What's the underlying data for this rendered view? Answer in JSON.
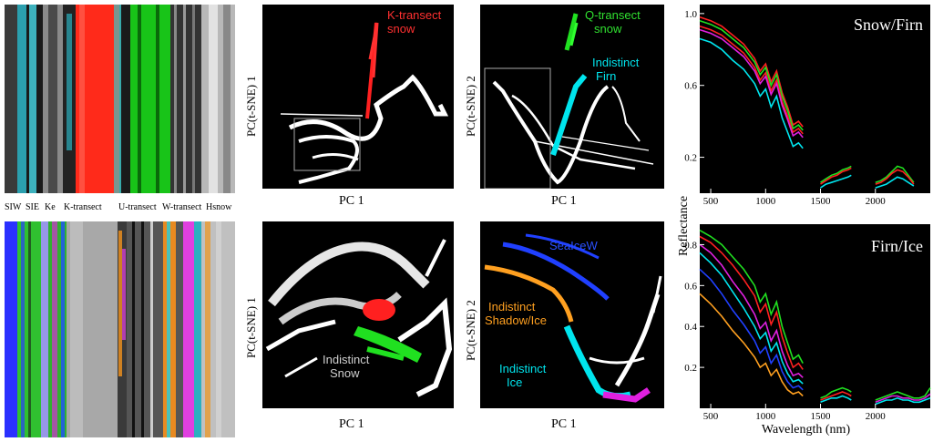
{
  "strip_labels": [
    "SIW",
    "SIE",
    "Ke",
    "K-transect",
    "U-transect",
    "W-transect",
    "Hsnow"
  ],
  "scatter_panels": [
    {
      "ylabel": "PC(t-SNE) 1",
      "xlabel": "PC 1",
      "annotations": [
        "K-transect",
        "snow"
      ]
    },
    {
      "ylabel": "PC(t-SNE) 2",
      "xlabel": "PC 1",
      "annotations": [
        "Q-transect",
        "snow",
        "Indistinct",
        "Firn"
      ]
    },
    {
      "ylabel": "PC(t-SNE) 1",
      "xlabel": "PC 1",
      "annotations": [
        "Indistinct",
        "Snow"
      ]
    },
    {
      "ylabel": "PC(t-SNE) 2",
      "xlabel": "PC 1",
      "annotations": [
        "SeaIceW",
        "Indistinct",
        "Shadow/Ice",
        "Indistinct",
        "Ice"
      ]
    }
  ],
  "colors": {
    "red": "#ff2020",
    "green": "#20e020",
    "cyan": "#00e5ee",
    "blue": "#2040ff",
    "orange": "#ffa020",
    "magenta": "#e020e0",
    "white": "#ffffff"
  },
  "chart_data": [
    {
      "type": "line",
      "title": "Snow/Firn",
      "xlabel": "",
      "ylabel": "Reflectance",
      "x_ticks": [
        500,
        1000,
        1500,
        2000
      ],
      "y_ticks": [
        0.2,
        0.6,
        1.0
      ],
      "xlim": [
        400,
        2500
      ],
      "ylim": [
        0.0,
        1.05
      ],
      "x": [
        400,
        500,
        600,
        700,
        800,
        900,
        950,
        1000,
        1050,
        1100,
        1150,
        1200,
        1250,
        1300,
        1340
      ],
      "series": [
        {
          "color": "#ff2020",
          "values": [
            0.98,
            0.96,
            0.93,
            0.88,
            0.83,
            0.75,
            0.68,
            0.72,
            0.62,
            0.68,
            0.56,
            0.48,
            0.38,
            0.4,
            0.37
          ]
        },
        {
          "color": "#20e020",
          "values": [
            0.96,
            0.94,
            0.91,
            0.86,
            0.81,
            0.73,
            0.66,
            0.7,
            0.6,
            0.66,
            0.54,
            0.46,
            0.36,
            0.38,
            0.35
          ]
        },
        {
          "color": "#ff2020",
          "values": [
            0.93,
            0.91,
            0.88,
            0.83,
            0.78,
            0.7,
            0.63,
            0.67,
            0.57,
            0.63,
            0.51,
            0.43,
            0.34,
            0.36,
            0.33
          ]
        },
        {
          "color": "#e020e0",
          "values": [
            0.91,
            0.89,
            0.86,
            0.81,
            0.76,
            0.68,
            0.61,
            0.65,
            0.55,
            0.61,
            0.49,
            0.41,
            0.32,
            0.34,
            0.31
          ]
        },
        {
          "color": "#00e5ee",
          "values": [
            0.86,
            0.84,
            0.8,
            0.74,
            0.69,
            0.61,
            0.54,
            0.58,
            0.48,
            0.54,
            0.42,
            0.34,
            0.26,
            0.28,
            0.25
          ]
        }
      ],
      "x2": [
        1500,
        1550,
        1600,
        1650,
        1700,
        1750,
        1780
      ],
      "series2": [
        {
          "color": "#20e020",
          "values": [
            0.06,
            0.08,
            0.1,
            0.11,
            0.13,
            0.14,
            0.15
          ]
        },
        {
          "color": "#ff2020",
          "values": [
            0.05,
            0.07,
            0.09,
            0.1,
            0.12,
            0.13,
            0.14
          ]
        },
        {
          "color": "#00e5ee",
          "values": [
            0.03,
            0.05,
            0.06,
            0.07,
            0.08,
            0.09,
            0.1
          ]
        }
      ],
      "x3": [
        2000,
        2050,
        2100,
        2150,
        2200,
        2250,
        2300,
        2350
      ],
      "series3": [
        {
          "color": "#20e020",
          "values": [
            0.06,
            0.07,
            0.09,
            0.12,
            0.15,
            0.14,
            0.1,
            0.06
          ]
        },
        {
          "color": "#ff2020",
          "values": [
            0.05,
            0.06,
            0.08,
            0.11,
            0.13,
            0.12,
            0.09,
            0.05
          ]
        },
        {
          "color": "#00e5ee",
          "values": [
            0.03,
            0.04,
            0.05,
            0.07,
            0.09,
            0.08,
            0.06,
            0.04
          ]
        }
      ]
    },
    {
      "type": "line",
      "title": "Firn/Ice",
      "xlabel": "Wavelength (nm)",
      "ylabel": "Reflectance",
      "x_ticks": [
        500,
        1000,
        1500,
        2000
      ],
      "y_ticks": [
        0.2,
        0.4,
        0.6,
        0.8
      ],
      "xlim": [
        400,
        2500
      ],
      "ylim": [
        0.0,
        0.9
      ],
      "x": [
        400,
        500,
        600,
        700,
        800,
        900,
        950,
        1000,
        1050,
        1100,
        1150,
        1200,
        1250,
        1300,
        1340
      ],
      "series": [
        {
          "color": "#20e020",
          "values": [
            0.87,
            0.84,
            0.8,
            0.74,
            0.68,
            0.6,
            0.52,
            0.56,
            0.46,
            0.52,
            0.4,
            0.32,
            0.24,
            0.26,
            0.22
          ]
        },
        {
          "color": "#ff2020",
          "values": [
            0.84,
            0.81,
            0.76,
            0.7,
            0.63,
            0.55,
            0.47,
            0.51,
            0.41,
            0.47,
            0.35,
            0.27,
            0.2,
            0.22,
            0.19
          ]
        },
        {
          "color": "#e020e0",
          "values": [
            0.8,
            0.76,
            0.7,
            0.62,
            0.55,
            0.46,
            0.39,
            0.42,
            0.33,
            0.38,
            0.28,
            0.21,
            0.16,
            0.17,
            0.15
          ]
        },
        {
          "color": "#00e5ee",
          "values": [
            0.76,
            0.71,
            0.65,
            0.57,
            0.49,
            0.4,
            0.34,
            0.37,
            0.28,
            0.32,
            0.23,
            0.17,
            0.13,
            0.14,
            0.12
          ]
        },
        {
          "color": "#2040ff",
          "values": [
            0.68,
            0.63,
            0.56,
            0.48,
            0.41,
            0.33,
            0.27,
            0.3,
            0.22,
            0.26,
            0.18,
            0.13,
            0.1,
            0.11,
            0.09
          ]
        },
        {
          "color": "#ffa020",
          "values": [
            0.56,
            0.51,
            0.45,
            0.38,
            0.32,
            0.25,
            0.2,
            0.22,
            0.16,
            0.19,
            0.13,
            0.09,
            0.07,
            0.08,
            0.06
          ]
        }
      ],
      "x2": [
        1500,
        1550,
        1600,
        1650,
        1700,
        1750,
        1780
      ],
      "series2": [
        {
          "color": "#20e020",
          "values": [
            0.05,
            0.06,
            0.08,
            0.09,
            0.1,
            0.09,
            0.08
          ]
        },
        {
          "color": "#ff2020",
          "values": [
            0.04,
            0.05,
            0.06,
            0.07,
            0.08,
            0.07,
            0.06
          ]
        },
        {
          "color": "#00e5ee",
          "values": [
            0.03,
            0.04,
            0.05,
            0.05,
            0.06,
            0.05,
            0.04
          ]
        }
      ],
      "x3": [
        2000,
        2050,
        2100,
        2150,
        2200,
        2250,
        2300,
        2350,
        2400,
        2450,
        2500
      ],
      "series3": [
        {
          "color": "#20e020",
          "values": [
            0.04,
            0.05,
            0.06,
            0.07,
            0.08,
            0.07,
            0.06,
            0.05,
            0.05,
            0.06,
            0.1
          ]
        },
        {
          "color": "#e020e0",
          "values": [
            0.03,
            0.04,
            0.05,
            0.06,
            0.06,
            0.05,
            0.05,
            0.04,
            0.04,
            0.05,
            0.07
          ]
        },
        {
          "color": "#00e5ee",
          "values": [
            0.02,
            0.03,
            0.04,
            0.04,
            0.05,
            0.04,
            0.04,
            0.03,
            0.03,
            0.04,
            0.05
          ]
        }
      ]
    }
  ]
}
